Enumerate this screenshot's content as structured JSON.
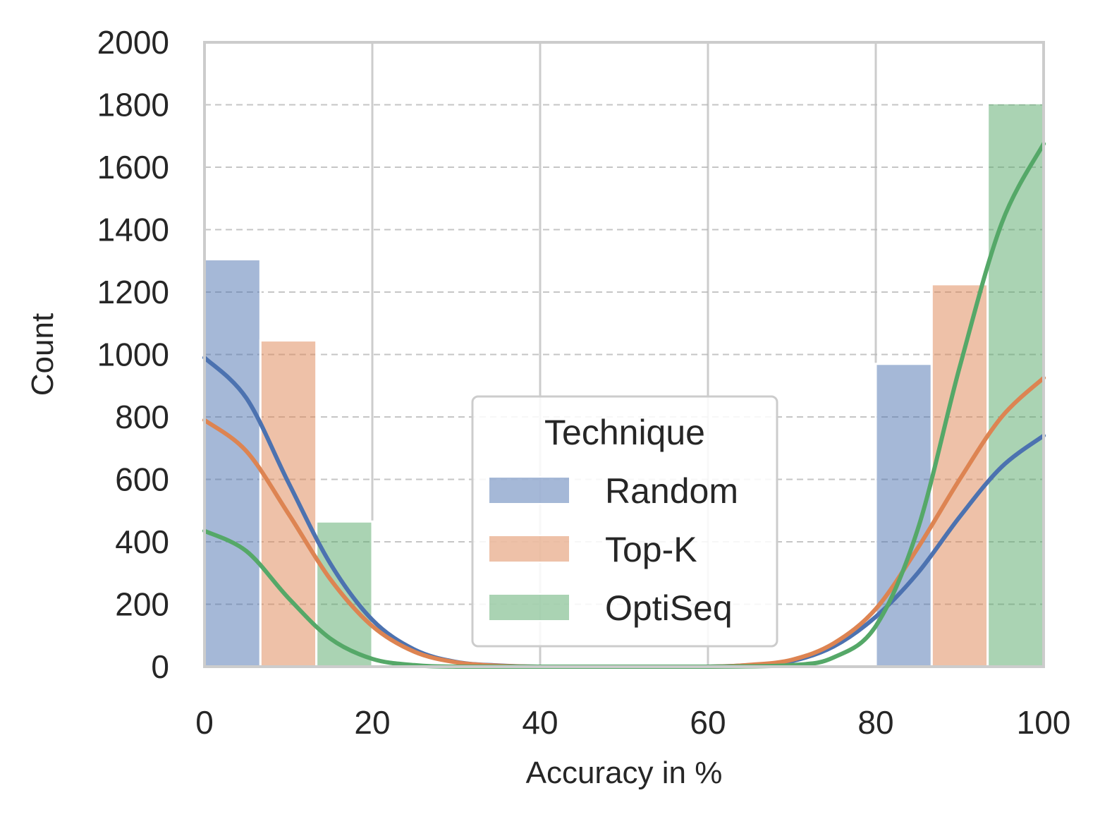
{
  "chart_data": {
    "type": "bar",
    "title": "",
    "xlabel": "Accuracy in %",
    "ylabel": "Count",
    "xlim": [
      0,
      100
    ],
    "ylim": [
      0,
      2000
    ],
    "x_ticks": [
      "0",
      "20",
      "40",
      "60",
      "80",
      "100"
    ],
    "y_ticks": [
      "0",
      "200",
      "400",
      "600",
      "800",
      "1000",
      "1200",
      "1400",
      "1600",
      "1800",
      "2000"
    ],
    "grid": true,
    "legend": {
      "title": "Technique",
      "placement": "lower-center"
    },
    "bins": [
      [
        0,
        20
      ],
      [
        80,
        100
      ]
    ],
    "series": [
      {
        "name": "Random",
        "color": "#4c72b0",
        "values": [
          1305,
          970
        ],
        "kde": {
          "x": [
            0,
            5,
            10,
            15,
            20,
            25,
            30,
            35,
            40,
            50,
            60,
            65,
            70,
            75,
            80,
            85,
            90,
            95,
            100
          ],
          "y": [
            990,
            860,
            590,
            330,
            150,
            55,
            15,
            4,
            0,
            0,
            0,
            5,
            18,
            65,
            160,
            300,
            480,
            640,
            740
          ]
        }
      },
      {
        "name": "Top-K",
        "color": "#dd8452",
        "values": [
          1045,
          1225
        ],
        "kde": {
          "x": [
            0,
            5,
            10,
            15,
            20,
            25,
            30,
            35,
            40,
            50,
            60,
            65,
            70,
            75,
            80,
            85,
            90,
            95,
            100
          ],
          "y": [
            790,
            690,
            490,
            280,
            130,
            48,
            14,
            3,
            0,
            0,
            0,
            6,
            22,
            75,
            185,
            380,
            600,
            800,
            925
          ]
        }
      },
      {
        "name": "OptiSeq",
        "color": "#55a868",
        "values": [
          465,
          1805
        ],
        "kde": {
          "x": [
            0,
            5,
            10,
            15,
            20,
            25,
            30,
            40,
            50,
            60,
            70,
            75,
            80,
            85,
            90,
            95,
            100
          ],
          "y": [
            435,
            370,
            220,
            90,
            25,
            5,
            0,
            0,
            0,
            0,
            5,
            30,
            130,
            440,
            960,
            1420,
            1675
          ]
        }
      }
    ]
  }
}
